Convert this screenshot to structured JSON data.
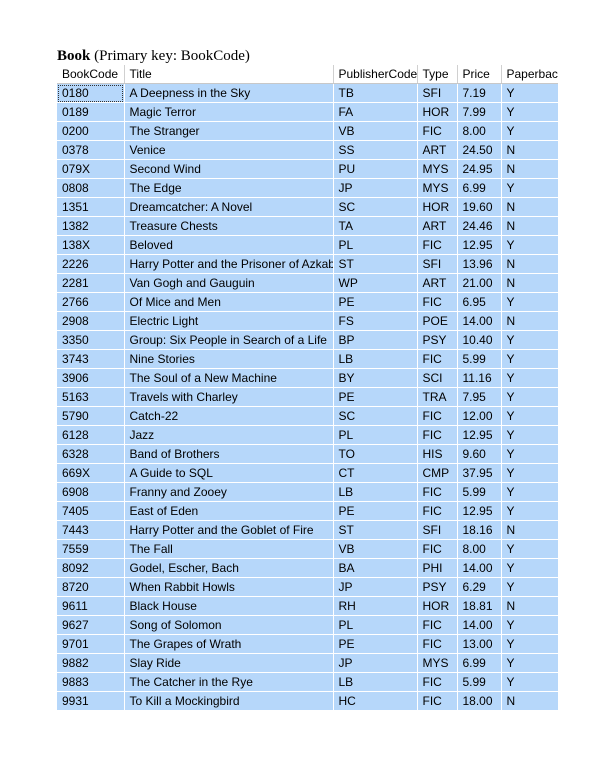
{
  "caption": {
    "table_name": "Book",
    "key_note": "(Primary key: BookCode)"
  },
  "columns": [
    "BookCode",
    "Title",
    "PublisherCode",
    "Type",
    "Price",
    "Paperback"
  ],
  "rows": [
    [
      "0180",
      "A Deepness in the Sky",
      "TB",
      "SFI",
      "7.19",
      "Y"
    ],
    [
      "0189",
      "Magic Terror",
      "FA",
      "HOR",
      "7.99",
      "Y"
    ],
    [
      "0200",
      "The Stranger",
      "VB",
      "FIC",
      "8.00",
      "Y"
    ],
    [
      "0378",
      "Venice",
      "SS",
      "ART",
      "24.50",
      "N"
    ],
    [
      "079X",
      "Second Wind",
      "PU",
      "MYS",
      "24.95",
      "N"
    ],
    [
      "0808",
      "The Edge",
      "JP",
      "MYS",
      "6.99",
      "Y"
    ],
    [
      "1351",
      "Dreamcatcher: A Novel",
      "SC",
      "HOR",
      "19.60",
      "N"
    ],
    [
      "1382",
      "Treasure Chests",
      "TA",
      "ART",
      "24.46",
      "N"
    ],
    [
      "138X",
      "Beloved",
      "PL",
      "FIC",
      "12.95",
      "Y"
    ],
    [
      "2226",
      "Harry Potter and the Prisoner of Azkaban",
      "ST",
      "SFI",
      "13.96",
      "N"
    ],
    [
      "2281",
      "Van Gogh and Gauguin",
      "WP",
      "ART",
      "21.00",
      "N"
    ],
    [
      "2766",
      "Of Mice and Men",
      "PE",
      "FIC",
      "6.95",
      "Y"
    ],
    [
      "2908",
      "Electric Light",
      "FS",
      "POE",
      "14.00",
      "N"
    ],
    [
      "3350",
      "Group: Six People in Search of a Life",
      "BP",
      "PSY",
      "10.40",
      "Y"
    ],
    [
      "3743",
      "Nine Stories",
      "LB",
      "FIC",
      "5.99",
      "Y"
    ],
    [
      "3906",
      "The Soul of a New Machine",
      "BY",
      "SCI",
      "11.16",
      "Y"
    ],
    [
      "5163",
      "Travels with Charley",
      "PE",
      "TRA",
      "7.95",
      "Y"
    ],
    [
      "5790",
      "Catch-22",
      "SC",
      "FIC",
      "12.00",
      "Y"
    ],
    [
      "6128",
      "Jazz",
      "PL",
      "FIC",
      "12.95",
      "Y"
    ],
    [
      "6328",
      "Band of Brothers",
      "TO",
      "HIS",
      "9.60",
      "Y"
    ],
    [
      "669X",
      "A Guide to SQL",
      "CT",
      "CMP",
      "37.95",
      "Y"
    ],
    [
      "6908",
      "Franny and Zooey",
      "LB",
      "FIC",
      "5.99",
      "Y"
    ],
    [
      "7405",
      "East of Eden",
      "PE",
      "FIC",
      "12.95",
      "Y"
    ],
    [
      "7443",
      "Harry Potter and the Goblet of Fire",
      "ST",
      "SFI",
      "18.16",
      "N"
    ],
    [
      "7559",
      "The Fall",
      "VB",
      "FIC",
      "8.00",
      "Y"
    ],
    [
      "8092",
      "Godel, Escher, Bach",
      "BA",
      "PHI",
      "14.00",
      "Y"
    ],
    [
      "8720",
      "When Rabbit Howls",
      "JP",
      "PSY",
      "6.29",
      "Y"
    ],
    [
      "9611",
      "Black House",
      "RH",
      "HOR",
      "18.81",
      "N"
    ],
    [
      "9627",
      "Song of Solomon",
      "PL",
      "FIC",
      "14.00",
      "Y"
    ],
    [
      "9701",
      "The Grapes of Wrath",
      "PE",
      "FIC",
      "13.00",
      "Y"
    ],
    [
      "9882",
      "Slay Ride",
      "JP",
      "MYS",
      "6.99",
      "Y"
    ],
    [
      "9883",
      "The Catcher in the Rye",
      "LB",
      "FIC",
      "5.99",
      "Y"
    ],
    [
      "9931",
      "To Kill a Mockingbird",
      "HC",
      "FIC",
      "18.00",
      "N"
    ]
  ],
  "colors": {
    "cell_fill": "#b6d7fa",
    "header_fill": "#ffffff"
  }
}
